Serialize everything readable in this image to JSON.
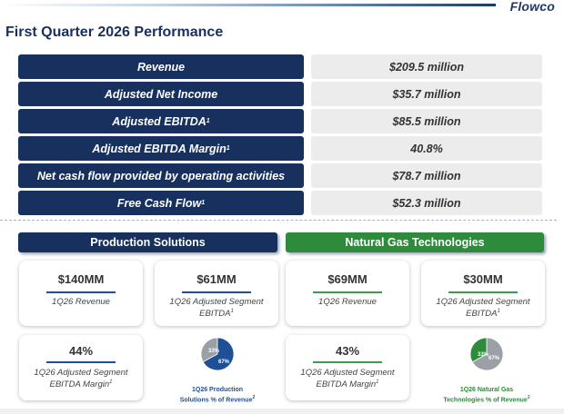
{
  "header": {
    "logo": "Flowco",
    "title": "First Quarter 2026 Performance"
  },
  "metrics": [
    {
      "label": "Revenue",
      "sup": "",
      "value": "$209.5 million"
    },
    {
      "label": "Adjusted Net Income",
      "sup": "",
      "value": "$35.7 million"
    },
    {
      "label": "Adjusted EBITDA",
      "sup": "1",
      "value": "$85.5 million"
    },
    {
      "label": "Adjusted EBITDA Margin",
      "sup": "1",
      "value": "40.8%"
    },
    {
      "label": "Net cash flow provided by operating activities",
      "sup": "",
      "value": "$78.7 million"
    },
    {
      "label": "Free Cash Flow",
      "sup": "1",
      "value": "$52.3 million"
    }
  ],
  "segments": {
    "production": {
      "title": "Production Solutions",
      "revenue": {
        "value": "$140MM",
        "desc": "1Q26 Revenue"
      },
      "ebitda": {
        "value": "$61MM",
        "desc_line1": "1Q26 Adjusted Segment",
        "desc_line2": "EBITDA",
        "sup": "1"
      },
      "margin": {
        "value": "44%",
        "desc_line1": "1Q26 Adjusted Segment",
        "desc_line2": "EBITDA Margin",
        "sup": "1"
      },
      "pie": {
        "share_pct": 67,
        "other_pct": 33,
        "share_label": "67%",
        "other_label": "33%",
        "caption_line1": "1Q26 Production",
        "caption_line2": "Solutions % of Revenue",
        "sup": "2",
        "color": "#1f4f96",
        "other_color": "#9aa0a6"
      }
    },
    "natural_gas": {
      "title": "Natural Gas Technologies",
      "revenue": {
        "value": "$69MM",
        "desc": "1Q26 Revenue"
      },
      "ebitda": {
        "value": "$30MM",
        "desc_line1": "1Q26 Adjusted Segment",
        "desc_line2": "EBITDA",
        "sup": "1"
      },
      "margin": {
        "value": "43%",
        "desc_line1": "1Q26 Adjusted Segment",
        "desc_line2": "EBITDA Margin",
        "sup": "1"
      },
      "pie": {
        "share_pct": 33,
        "other_pct": 67,
        "share_label": "33%",
        "other_label": "67%",
        "caption_line1": "1Q26 Natural Gas",
        "caption_line2": "Technologies % of Revenue",
        "sup": "2",
        "color": "#2e8b3b",
        "other_color": "#9aa0a6"
      }
    }
  },
  "colors": {
    "navy": "#17305e",
    "green": "#2e8b3b",
    "value_bg": "#ececec"
  }
}
